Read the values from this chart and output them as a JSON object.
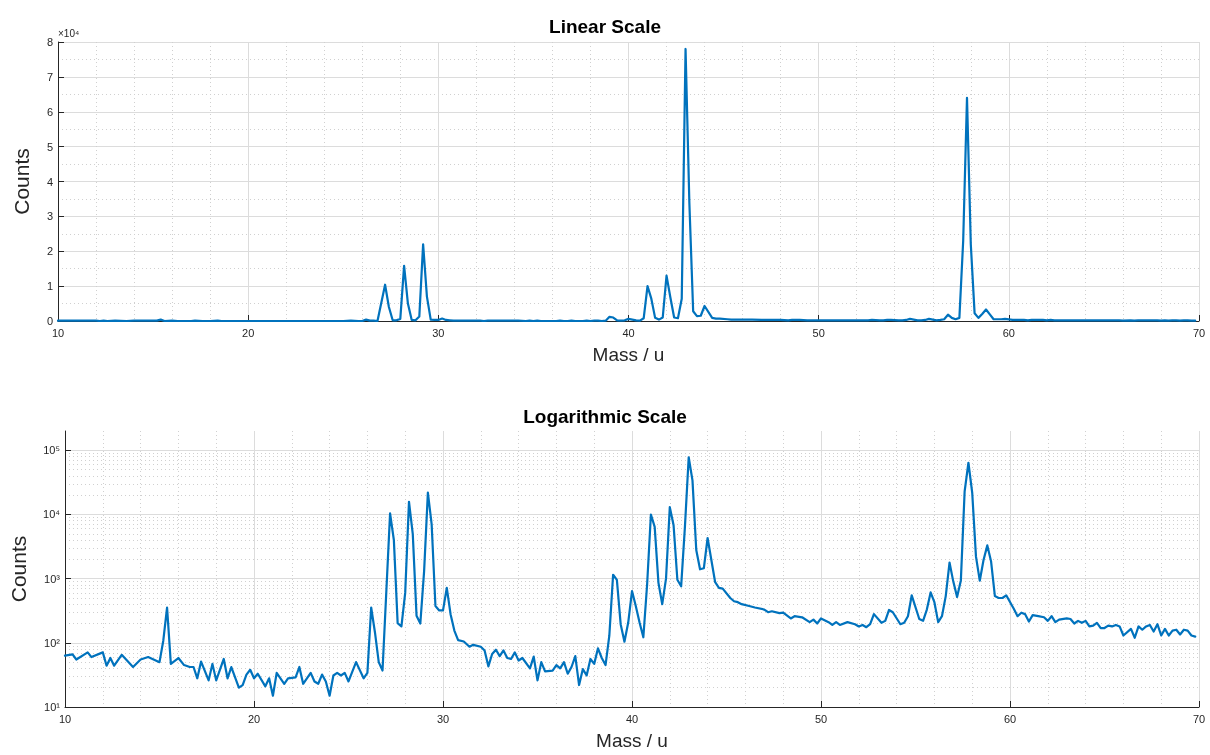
{
  "chart_data": [
    {
      "type": "line",
      "title": "Linear Scale",
      "xlabel": "Mass / u",
      "ylabel": "Counts",
      "annotations": [
        "×10⁴"
      ],
      "x": [
        10,
        10.4,
        10.6,
        11.2,
        11.4,
        12,
        12.2,
        12.4,
        12.6,
        13,
        13.6,
        14,
        14.4,
        15,
        15.2,
        15.4,
        15.6,
        16,
        16.3,
        16.6,
        16.8,
        17,
        17.2,
        17.6,
        17.8,
        18,
        18.4,
        18.6,
        18.8,
        19.2,
        19.4,
        19.6,
        19.8,
        20,
        20.2,
        20.6,
        20.8,
        21,
        21.2,
        21.6,
        21.8,
        22.2,
        22.4,
        22.6,
        23,
        23.2,
        23.4,
        23.6,
        23.8,
        24,
        24.2,
        24.4,
        24.6,
        24.8,
        25,
        25.4,
        25.8,
        26,
        26.2,
        26.4,
        26.6,
        26.8,
        27.2,
        27.4,
        27.6,
        27.8,
        28,
        28.2,
        28.4,
        28.6,
        28.8,
        29,
        29.2,
        29.4,
        29.6,
        29.8,
        30,
        30.2,
        30.4,
        30.6,
        30.8,
        31.1,
        31.4,
        31.6,
        32,
        32.2,
        32.4,
        32.6,
        32.8,
        33,
        33.2,
        33.4,
        33.6,
        33.8,
        34,
        34.2,
        34.6,
        34.8,
        35,
        35.2,
        35.4,
        35.8,
        36,
        36.2,
        36.4,
        36.6,
        36.8,
        37,
        37.2,
        37.4,
        37.6,
        37.8,
        38,
        38.2,
        38.4,
        38.6,
        38.8,
        39,
        39.2,
        39.4,
        39.6,
        39.8,
        40,
        40.2,
        40.4,
        40.6,
        40.8,
        41,
        41.2,
        41.4,
        41.6,
        41.8,
        42,
        42.2,
        42.4,
        42.6,
        42.8,
        43,
        43.2,
        43.4,
        43.6,
        43.8,
        44,
        44.4,
        44.6,
        44.8,
        45.2,
        45.4,
        45.6,
        45.8,
        46.2,
        46.5,
        47,
        47.2,
        47.4,
        47.8,
        48,
        48.4,
        48.6,
        49,
        49.4,
        49.6,
        49.8,
        50,
        50.4,
        50.6,
        50.8,
        51,
        51.4,
        51.8,
        52,
        52.2,
        52.4,
        52.6,
        52.8,
        53.2,
        53.4,
        53.6,
        53.8,
        54.2,
        54.4,
        54.6,
        54.8,
        55.2,
        55.4,
        55.6,
        55.8,
        56,
        56.2,
        56.4,
        56.6,
        56.8,
        57,
        57.2,
        57.4,
        57.6,
        57.8,
        58,
        58.2,
        58.4,
        58.6,
        58.8,
        59,
        59.2,
        59.4,
        59.6,
        59.8,
        60.2,
        60.4,
        60.6,
        60.8,
        61,
        61.2,
        61.5,
        61.8,
        62,
        62.2,
        62.4,
        62.6,
        63,
        63.2,
        63.4,
        63.6,
        63.8,
        64,
        64.2,
        64.4,
        64.6,
        64.8,
        65,
        65.2,
        65.4,
        65.6,
        65.8,
        66,
        66.4,
        66.6,
        66.8,
        67,
        67.2,
        67.4,
        67.6,
        67.8,
        68,
        68.2,
        68.4,
        68.6,
        68.8,
        69,
        69.2,
        69.4,
        69.6,
        69.8
      ],
      "series": [
        {
          "color": "#0072bd",
          "values": [
            0.01,
            0.01,
            0.01,
            0.01,
            0.01,
            0.01,
            0,
            0.01,
            0,
            0.01,
            0,
            0.01,
            0.01,
            0.01,
            0.01,
            0.04,
            0,
            0.01,
            0,
            0,
            0,
            0,
            0.01,
            0,
            0,
            0,
            0.01,
            0,
            0,
            0,
            0,
            0,
            0,
            0,
            0,
            0,
            0,
            0,
            0,
            0,
            0,
            0,
            0,
            0,
            0,
            0,
            0,
            0,
            0,
            0,
            0,
            0,
            0,
            0,
            0,
            0.01,
            0,
            0,
            0.04,
            0.01,
            0.01,
            0,
            1.04,
            0.4,
            0.02,
            0.02,
            0.06,
            1.58,
            0.5,
            0.03,
            0.02,
            0.13,
            2.2,
            0.7,
            0.04,
            0.03,
            0.03,
            0.07,
            0.03,
            0.02,
            0.01,
            0.01,
            0.01,
            0.01,
            0.01,
            0.01,
            0,
            0.01,
            0.01,
            0.01,
            0.01,
            0.01,
            0.01,
            0.01,
            0.01,
            0.01,
            0,
            0.01,
            0,
            0.01,
            0,
            0,
            0,
            0,
            0.01,
            0,
            0,
            0.01,
            0,
            0,
            0,
            0.01,
            0,
            0.01,
            0.01,
            0,
            0.01,
            0.12,
            0.1,
            0.02,
            0.01,
            0.02,
            0.06,
            0.04,
            0.02,
            0.01,
            0.08,
            1,
            0.64,
            0.09,
            0.04,
            0.1,
            1.3,
            0.68,
            0.1,
            0.08,
            0.64,
            7.8,
            3.4,
            0.28,
            0.14,
            0.15,
            0.43,
            0.09,
            0.07,
            0.07,
            0.05,
            0.04,
            0.04,
            0.04,
            0.04,
            0.04,
            0.03,
            0.03,
            0.03,
            0.03,
            0.03,
            0.02,
            0.03,
            0.03,
            0.02,
            0.02,
            0.02,
            0.02,
            0.02,
            0.02,
            0.02,
            0.02,
            0.02,
            0.02,
            0.02,
            0.02,
            0.02,
            0.02,
            0.03,
            0.02,
            0.02,
            0.03,
            0.03,
            0.02,
            0.02,
            0.03,
            0.06,
            0.02,
            0.02,
            0.03,
            0.06,
            0.04,
            0.02,
            0.03,
            0.05,
            0.18,
            0.09,
            0.05,
            0.09,
            2.3,
            6.4,
            2.2,
            0.22,
            0.09,
            0.2,
            0.33,
            0.19,
            0.05,
            0.05,
            0.05,
            0.06,
            0.03,
            0.03,
            0.03,
            0.03,
            0.02,
            0.03,
            0.03,
            0.03,
            0.02,
            0.03,
            0.02,
            0.02,
            0.02,
            0.02,
            0.02,
            0.02,
            0.02,
            0.02,
            0.02,
            0.02,
            0.02,
            0.02,
            0.02,
            0.02,
            0.02,
            0.02,
            0.02,
            0.01,
            0.02,
            0.01,
            0.02,
            0.02,
            0.02,
            0.02,
            0.02,
            0.02,
            0.01,
            0.02,
            0.01,
            0.02,
            0.02,
            0.01,
            0.02,
            0.02,
            0.01,
            0.01
          ]
        }
      ],
      "xlim": [
        10,
        70
      ],
      "xticks": [
        10,
        20,
        30,
        40,
        50,
        60,
        70
      ],
      "ylim": [
        0,
        8
      ],
      "yticks": [
        0,
        1,
        2,
        3,
        4,
        5,
        6,
        7,
        8
      ],
      "grid": true,
      "marker": "none",
      "line_style": "solid"
    },
    {
      "type": "line",
      "title": "Logarithmic Scale",
      "xlabel": "Mass / u",
      "ylabel": "Counts",
      "x": [
        10,
        10.4,
        10.6,
        11.2,
        11.4,
        12,
        12.2,
        12.4,
        12.6,
        13,
        13.6,
        14,
        14.4,
        15,
        15.2,
        15.4,
        15.6,
        16,
        16.3,
        16.6,
        16.8,
        17,
        17.2,
        17.6,
        17.8,
        18,
        18.4,
        18.6,
        18.8,
        19.2,
        19.4,
        19.6,
        19.8,
        20,
        20.2,
        20.6,
        20.8,
        21,
        21.2,
        21.6,
        21.8,
        22.2,
        22.4,
        22.6,
        23,
        23.2,
        23.4,
        23.6,
        23.8,
        24,
        24.2,
        24.4,
        24.6,
        24.8,
        25,
        25.4,
        25.8,
        26,
        26.2,
        26.4,
        26.6,
        26.8,
        27.2,
        27.4,
        27.6,
        27.8,
        28,
        28.2,
        28.4,
        28.6,
        28.8,
        29,
        29.2,
        29.4,
        29.6,
        29.8,
        30,
        30.2,
        30.4,
        30.6,
        30.8,
        31.1,
        31.4,
        31.6,
        32,
        32.2,
        32.4,
        32.6,
        32.8,
        33,
        33.2,
        33.4,
        33.6,
        33.8,
        34,
        34.2,
        34.6,
        34.8,
        35,
        35.2,
        35.4,
        35.8,
        36,
        36.2,
        36.4,
        36.6,
        36.8,
        37,
        37.2,
        37.4,
        37.6,
        37.8,
        38,
        38.2,
        38.4,
        38.6,
        38.8,
        39,
        39.2,
        39.4,
        39.6,
        39.8,
        40,
        40.2,
        40.4,
        40.6,
        40.8,
        41,
        41.2,
        41.4,
        41.6,
        41.8,
        42,
        42.2,
        42.4,
        42.6,
        42.8,
        43,
        43.2,
        43.4,
        43.6,
        43.8,
        44,
        44.4,
        44.6,
        44.8,
        45.2,
        45.4,
        45.6,
        45.8,
        46.2,
        46.5,
        47,
        47.2,
        47.4,
        47.8,
        48,
        48.4,
        48.6,
        49,
        49.4,
        49.6,
        49.8,
        50,
        50.4,
        50.6,
        50.8,
        51,
        51.4,
        51.8,
        52,
        52.2,
        52.4,
        52.6,
        52.8,
        53.2,
        53.4,
        53.6,
        53.8,
        54.2,
        54.4,
        54.6,
        54.8,
        55.2,
        55.4,
        55.6,
        55.8,
        56,
        56.2,
        56.4,
        56.6,
        56.8,
        57,
        57.2,
        57.4,
        57.6,
        57.8,
        58,
        58.2,
        58.4,
        58.6,
        58.8,
        59,
        59.2,
        59.4,
        59.6,
        59.8,
        60.2,
        60.4,
        60.6,
        60.8,
        61,
        61.2,
        61.5,
        61.8,
        62,
        62.2,
        62.4,
        62.6,
        63,
        63.2,
        63.4,
        63.6,
        63.8,
        64,
        64.2,
        64.4,
        64.6,
        64.8,
        65,
        65.2,
        65.4,
        65.6,
        65.8,
        66,
        66.4,
        66.6,
        66.8,
        67,
        67.2,
        67.4,
        67.6,
        67.8,
        68,
        68.2,
        68.4,
        68.6,
        68.8,
        69,
        69.2,
        69.4,
        69.6,
        69.8
      ],
      "series": [
        {
          "color": "#0072bd",
          "values": [
            63,
            66,
            55,
            71,
            60,
            71,
            44,
            58,
            44,
            65,
            42,
            55,
            60,
            50,
            108,
            355,
            47,
            58,
            45,
            42,
            42,
            28,
            51,
            26,
            47,
            26,
            56,
            28,
            42,
            20,
            22,
            32,
            38,
            28,
            33,
            21,
            28,
            15,
            34,
            23,
            28,
            29,
            42,
            23,
            34,
            25,
            23,
            32,
            25,
            15,
            31,
            34,
            31,
            34,
            25,
            50,
            28,
            34,
            355,
            145,
            50,
            37,
            10400,
            4000,
            203,
            180,
            600,
            15800,
            5000,
            265,
            200,
            1300,
            22000,
            7000,
            375,
            320,
            320,
            720,
            280,
            155,
            110,
            105,
            87,
            93,
            87,
            76,
            43,
            67,
            78,
            62,
            76,
            58,
            56,
            71,
            53,
            58,
            40,
            61,
            26,
            50,
            36,
            37,
            45,
            40,
            50,
            33,
            42,
            62,
            22,
            39,
            31,
            56,
            47,
            82,
            58,
            45,
            129,
            1150,
            960,
            195,
            104,
            207,
            640,
            375,
            207,
            122,
            810,
            10000,
            6400,
            860,
            400,
            1000,
            13000,
            6800,
            960,
            760,
            6400,
            78000,
            34000,
            2800,
            1400,
            1450,
            4300,
            880,
            720,
            700,
            500,
            445,
            430,
            400,
            375,
            355,
            330,
            300,
            310,
            290,
            295,
            240,
            260,
            250,
            210,
            230,
            200,
            240,
            210,
            190,
            210,
            190,
            210,
            195,
            180,
            190,
            175,
            195,
            280,
            205,
            220,
            325,
            300,
            195,
            205,
            260,
            550,
            235,
            220,
            330,
            610,
            430,
            210,
            260,
            535,
            1780,
            900,
            520,
            940,
            23000,
            64000,
            22000,
            2200,
            930,
            1950,
            3300,
            1850,
            535,
            500,
            500,
            550,
            340,
            260,
            295,
            280,
            215,
            270,
            260,
            250,
            220,
            260,
            210,
            230,
            240,
            235,
            200,
            220,
            205,
            220,
            180,
            185,
            205,
            170,
            170,
            185,
            180,
            190,
            180,
            130,
            165,
            120,
            180,
            160,
            180,
            190,
            150,
            195,
            130,
            165,
            130,
            155,
            160,
            135,
            160,
            155,
            130,
            125
          ]
        }
      ],
      "xlim": [
        10,
        70
      ],
      "xticks": [
        10,
        20,
        30,
        40,
        50,
        60,
        70
      ],
      "ylim": [
        10,
        200000
      ],
      "yticks": [
        {
          "value": 10,
          "label": "10¹"
        },
        {
          "value": 100,
          "label": "10²"
        },
        {
          "value": 1000,
          "label": "10³"
        },
        {
          "value": 10000,
          "label": "10⁴"
        },
        {
          "value": 100000,
          "label": "10⁵"
        }
      ],
      "log": "y",
      "grid": true,
      "marker": "none",
      "line_style": "solid"
    }
  ]
}
